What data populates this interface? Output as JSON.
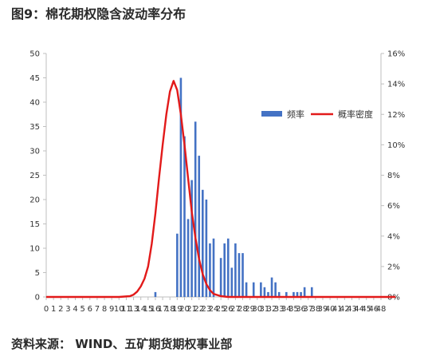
{
  "figure": {
    "title": "图9：棉花期权隐含波动率分布",
    "source": "资料来源：  WIND、五矿期货期权事业部"
  },
  "chart_data": {
    "type": "bar",
    "x_ticks": [
      "0",
      "1",
      "2",
      "3",
      "4",
      "5",
      "6",
      "7",
      "8",
      "9",
      "10",
      "11",
      "13",
      "14",
      "15",
      "16",
      "17",
      "18",
      "19",
      "20",
      "21",
      "22",
      "23",
      "24",
      "25",
      "26",
      "27",
      "28",
      "29",
      "30",
      "31",
      "32",
      "33",
      "34",
      "35",
      "36",
      "37",
      "38",
      "39",
      "40",
      "41",
      "42",
      "43",
      "44",
      "45",
      "46",
      "48"
    ],
    "y_left": {
      "ylim": [
        0,
        50
      ],
      "ticks": [
        "0",
        "5",
        "10",
        "15",
        "20",
        "25",
        "30",
        "35",
        "40",
        "45",
        "50"
      ]
    },
    "y_right": {
      "ylim": [
        0,
        16
      ],
      "ticks": [
        "0%",
        "2%",
        "4%",
        "6%",
        "8%",
        "10%",
        "12%",
        "14%",
        "16%"
      ]
    },
    "legend_position": "right",
    "series": [
      {
        "name": "频率",
        "type": "bar",
        "color": "#4472C4",
        "points": [
          {
            "x": 15.0,
            "y": 1
          },
          {
            "x": 18.0,
            "y": 13
          },
          {
            "x": 18.5,
            "y": 45
          },
          {
            "x": 19.0,
            "y": 33
          },
          {
            "x": 19.5,
            "y": 16
          },
          {
            "x": 20.0,
            "y": 24
          },
          {
            "x": 20.5,
            "y": 36
          },
          {
            "x": 21.0,
            "y": 29
          },
          {
            "x": 21.5,
            "y": 22
          },
          {
            "x": 22.0,
            "y": 20
          },
          {
            "x": 22.5,
            "y": 11
          },
          {
            "x": 23.0,
            "y": 12
          },
          {
            "x": 24.0,
            "y": 8
          },
          {
            "x": 24.5,
            "y": 11
          },
          {
            "x": 25.0,
            "y": 12
          },
          {
            "x": 25.5,
            "y": 6
          },
          {
            "x": 26.0,
            "y": 11
          },
          {
            "x": 26.5,
            "y": 9
          },
          {
            "x": 27.0,
            "y": 9
          },
          {
            "x": 27.5,
            "y": 3
          },
          {
            "x": 28.5,
            "y": 3
          },
          {
            "x": 29.5,
            "y": 3
          },
          {
            "x": 30.0,
            "y": 2
          },
          {
            "x": 30.5,
            "y": 1
          },
          {
            "x": 31.0,
            "y": 4
          },
          {
            "x": 31.5,
            "y": 3
          },
          {
            "x": 32.0,
            "y": 1
          },
          {
            "x": 33.0,
            "y": 1
          },
          {
            "x": 34.0,
            "y": 1
          },
          {
            "x": 34.5,
            "y": 1
          },
          {
            "x": 35.0,
            "y": 1
          },
          {
            "x": 35.5,
            "y": 2
          },
          {
            "x": 36.5,
            "y": 2
          }
        ]
      },
      {
        "name": "概率密度",
        "type": "line",
        "color": "#E21A1A",
        "axis": "right",
        "points": [
          {
            "x": 0,
            "y": 0
          },
          {
            "x": 6,
            "y": 0
          },
          {
            "x": 10,
            "y": 0
          },
          {
            "x": 11.5,
            "y": 0.05
          },
          {
            "x": 12.0,
            "y": 0.15
          },
          {
            "x": 12.5,
            "y": 0.35
          },
          {
            "x": 13.0,
            "y": 0.7
          },
          {
            "x": 13.5,
            "y": 1.2
          },
          {
            "x": 14.0,
            "y": 2.0
          },
          {
            "x": 14.5,
            "y": 3.5
          },
          {
            "x": 15.0,
            "y": 5.5
          },
          {
            "x": 15.5,
            "y": 7.8
          },
          {
            "x": 16.0,
            "y": 10.0
          },
          {
            "x": 16.5,
            "y": 12.0
          },
          {
            "x": 17.0,
            "y": 13.5
          },
          {
            "x": 17.5,
            "y": 14.2
          },
          {
            "x": 18.0,
            "y": 13.6
          },
          {
            "x": 18.5,
            "y": 12.0
          },
          {
            "x": 19.0,
            "y": 10.0
          },
          {
            "x": 19.5,
            "y": 7.8
          },
          {
            "x": 20.0,
            "y": 5.6
          },
          {
            "x": 20.5,
            "y": 3.9
          },
          {
            "x": 21.0,
            "y": 2.5
          },
          {
            "x": 21.5,
            "y": 1.5
          },
          {
            "x": 22.0,
            "y": 0.85
          },
          {
            "x": 22.5,
            "y": 0.45
          },
          {
            "x": 23.0,
            "y": 0.2
          },
          {
            "x": 24.0,
            "y": 0.05
          },
          {
            "x": 25.0,
            "y": 0
          },
          {
            "x": 48,
            "y": 0
          }
        ]
      }
    ]
  }
}
